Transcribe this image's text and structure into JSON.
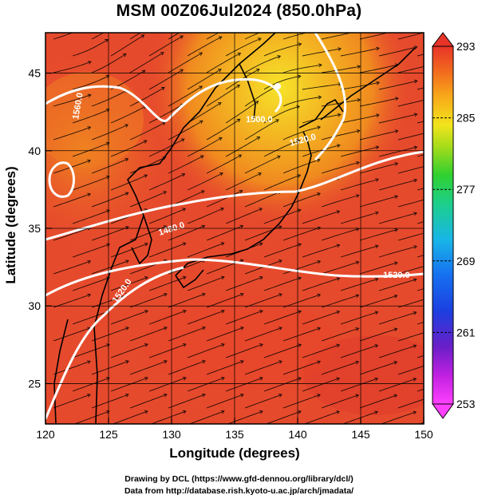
{
  "title": "MSM 00Z06Jul2024 (850.0hPa)",
  "xlabel": "Longitude (degrees)",
  "ylabel": "Latitude  (degrees)",
  "credits": {
    "line1": "Drawing by DCL (https://www.gfd-dennou.org/library/dcl/)",
    "line2": "Data from http://database.rish.kyoto-u.ac.jp/arch/jmadata/"
  },
  "map": {
    "lon_range": [
      120,
      150
    ],
    "lat_range": [
      22.4,
      47.6
    ],
    "lon_ticks": [
      120,
      125,
      130,
      135,
      140,
      145,
      150
    ],
    "lat_ticks": [
      25,
      30,
      35,
      40,
      45
    ],
    "grid": true,
    "field": "temperature (shaded) with wind streamlines and geopotential height contours",
    "contour_labels": [
      "1560.0",
      "1500.0",
      "1480.0",
      "1520.0",
      "1520.0",
      "1520.0"
    ]
  },
  "colorbar": {
    "ticks": [
      "293",
      "285",
      "277",
      "269",
      "261",
      "253"
    ],
    "min": 253,
    "max": 293
  },
  "colors": {
    "warm_red": "#e84a2e",
    "orange": "#f27a1c",
    "yellow": "#f5d51e",
    "contour": "#ffffff",
    "coast": "#000000"
  }
}
